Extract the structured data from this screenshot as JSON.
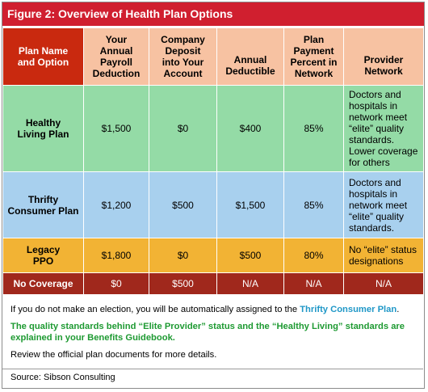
{
  "title": "Figure 2: Overview of Health Plan Options",
  "table": {
    "headers": {
      "plan": [
        "Plan Name",
        "and Option"
      ],
      "payroll": [
        "Your",
        "Annual",
        "Payroll",
        "Deduction"
      ],
      "deposit": [
        "Company",
        "Deposit",
        "into Your",
        "Account"
      ],
      "deductible": [
        "Annual",
        "Deductible"
      ],
      "payment": [
        "Plan",
        "Payment",
        "Percent in",
        "Network"
      ],
      "network": [
        "Provider",
        "Network"
      ]
    },
    "rows": [
      {
        "name": [
          "Healthy",
          "Living Plan"
        ],
        "payroll": "$1,500",
        "deposit": "$0",
        "deductible": "$400",
        "payment": "85%",
        "network": [
          "Doctors and",
          "hospitals in",
          "network meet",
          "“elite” quality",
          "standards.",
          "Lower coverage",
          "for others"
        ]
      },
      {
        "name": [
          "Thrifty",
          "Consumer Plan"
        ],
        "payroll": "$1,200",
        "deposit": "$500",
        "deductible": "$1,500",
        "payment": "85%",
        "network": [
          "Doctors and",
          "hospitals in",
          "network meet",
          "“elite” quality",
          "standards."
        ]
      },
      {
        "name": [
          "Legacy",
          "PPO"
        ],
        "payroll": "$1,800",
        "deposit": "$0",
        "deductible": "$500",
        "payment": "80%",
        "network": [
          "No “elite” status",
          "designations"
        ]
      },
      {
        "name": [
          "No Coverage"
        ],
        "payroll": "$0",
        "deposit": "$500",
        "deductible": "N/A",
        "payment": "N/A",
        "network": [
          "N/A"
        ]
      }
    ]
  },
  "notes": {
    "line1_text": "If you do not make an election, you will be automatically assigned to the ",
    "line1_highlight": "Thrifty Consumer Plan",
    "line1_end": ".",
    "line2": "The quality standards behind “Elite Provider” status and the “Healthy Living” standards are explained in your Benefits Guidebook.",
    "line3": "Review the official plan documents for more details."
  },
  "source": "Source: Sibson Consulting",
  "colors": {
    "title_bg": "#d01f2f",
    "header_bg": "#f7c2a2",
    "corner_bg": "#c9290f",
    "healthy_bg": "#94dba6",
    "thrifty_bg": "#a8d0ee",
    "legacy_bg": "#f2b334",
    "none_bg": "#a0281c",
    "highlight_blue": "#1f97c7",
    "note_green": "#1e9a32"
  }
}
